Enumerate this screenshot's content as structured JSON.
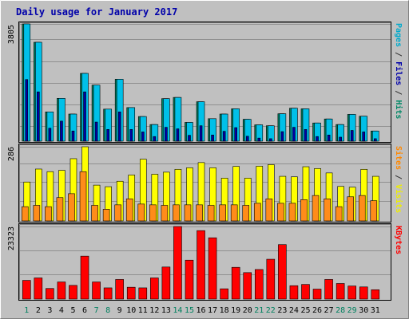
{
  "chart_data": {
    "type": "bar",
    "title": "Daily usage for January 2017",
    "categories": [
      "1",
      "2",
      "3",
      "4",
      "5",
      "6",
      "7",
      "8",
      "9",
      "10",
      "11",
      "12",
      "13",
      "14",
      "15",
      "16",
      "17",
      "18",
      "19",
      "20",
      "21",
      "22",
      "23",
      "24",
      "25",
      "26",
      "27",
      "28",
      "29",
      "30",
      "31"
    ],
    "weekend_days": [
      "1",
      "7",
      "8",
      "14",
      "15",
      "21",
      "22",
      "28",
      "29"
    ],
    "panels": [
      {
        "name": "hits-files-pages",
        "ytick_label": "3805",
        "ymax": 3805,
        "side_label": [
          {
            "text": "Pages",
            "color": "#00aacc"
          },
          {
            "text": " / ",
            "color": "#333333"
          },
          {
            "text": "Files",
            "color": "#0000aa"
          },
          {
            "text": " / ",
            "color": "#333333"
          },
          {
            "text": "Hits",
            "color": "#008866"
          }
        ],
        "series": [
          {
            "name": "Hits",
            "color": "#00805f",
            "values": [
              3805,
              3210,
              950,
              1390,
              880,
              2200,
              1820,
              1040,
              2010,
              1090,
              800,
              540,
              1380,
              1420,
              610,
              1280,
              730,
              880,
              1050,
              710,
              530,
              500,
              890,
              1070,
              1050,
              590,
              720,
              540,
              870,
              810,
              330
            ]
          },
          {
            "name": "Files",
            "color": "#00c0e8",
            "values": [
              3805,
              3210,
              950,
              1390,
              880,
              2200,
              1820,
              1040,
              2010,
              1090,
              800,
              540,
              1380,
              1420,
              610,
              1280,
              730,
              880,
              1050,
              710,
              530,
              500,
              890,
              1070,
              1050,
              590,
              720,
              540,
              870,
              810,
              330
            ]
          },
          {
            "name": "Pages",
            "color": "#0000a8",
            "values": [
              2000,
              1600,
              420,
              650,
              330,
              1600,
              620,
              380,
              950,
              380,
              300,
              150,
              450,
              400,
              190,
              500,
              200,
              320,
              440,
              160,
              100,
              80,
              310,
              450,
              380,
              150,
              200,
              130,
              350,
              300,
              80
            ]
          }
        ]
      },
      {
        "name": "visits-sites",
        "ytick_label": "286",
        "ymax": 286,
        "side_label": [
          {
            "text": "Sites",
            "color": "#ff8800"
          },
          {
            "text": " / ",
            "color": "#333333"
          },
          {
            "text": "Visits",
            "color": "#eeee00"
          }
        ],
        "series": [
          {
            "name": "Visits",
            "color": "#ffff00",
            "values": [
              150,
              200,
              190,
              195,
              240,
              286,
              138,
              132,
              153,
              177,
              238,
              180,
              188,
              199,
              205,
              225,
              205,
              165,
              210,
              165,
              211,
              217,
              172,
              170,
              209,
              202,
              185,
              133,
              130,
              199,
              172
            ]
          },
          {
            "name": "Sites",
            "color": "#ff8c1a",
            "values": [
              55,
              60,
              55,
              90,
              105,
              190,
              60,
              45,
              62,
              85,
              65,
              62,
              60,
              62,
              62,
              62,
              60,
              62,
              62,
              60,
              68,
              85,
              68,
              68,
              82,
              98,
              85,
              55,
              93,
              98,
              78
            ]
          }
        ]
      },
      {
        "name": "kbytes",
        "ytick_label": "23323",
        "ymax": 23323,
        "side_label": [
          {
            "text": "KBytes",
            "color": "#ff0000"
          }
        ],
        "series": [
          {
            "name": "KBytes",
            "color": "#ff0000",
            "values": [
              6000,
              6800,
              3400,
              5500,
              4400,
              13800,
              5500,
              3600,
              6300,
              3800,
              3600,
              6800,
              10300,
              23323,
              12500,
              22000,
              19700,
              3300,
              10200,
              8500,
              9500,
              12800,
              17500,
              4300,
              4700,
              3200,
              6300,
              5000,
              4200,
              3900,
              3000
            ]
          }
        ]
      }
    ]
  }
}
